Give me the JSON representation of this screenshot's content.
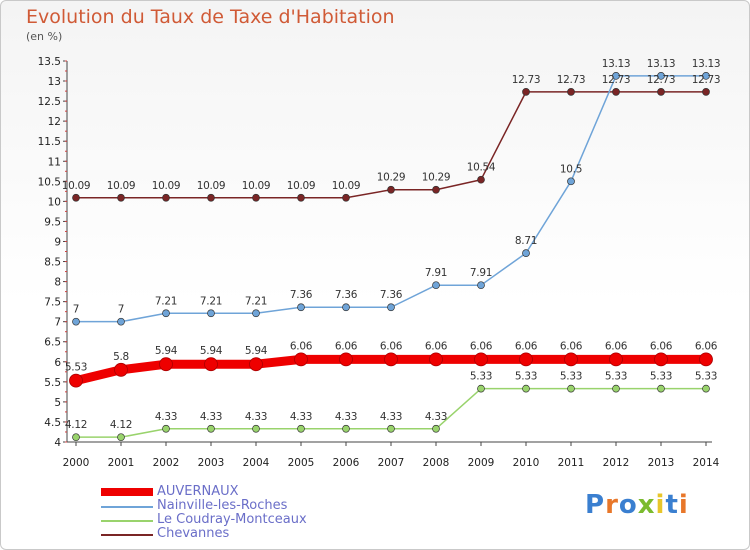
{
  "chart_data": {
    "type": "line",
    "title": "Evolution du Taux de Taxe d'Habitation",
    "unit_label": "(en %)",
    "x": [
      "2000",
      "2001",
      "2002",
      "2003",
      "2004",
      "2005",
      "2006",
      "2007",
      "2008",
      "2009",
      "2010",
      "2011",
      "2012",
      "2013",
      "2014"
    ],
    "ylim": [
      4,
      13.5
    ],
    "y_ticks": [
      "4",
      "4.5",
      "5",
      "5.5",
      "6",
      "6.5",
      "7",
      "7.5",
      "8",
      "8.5",
      "9",
      "9.5",
      "10",
      "10.5",
      "11",
      "11.5",
      "12",
      "12.5",
      "13",
      "13.5"
    ],
    "grid": false,
    "legend_position": "bottom-left",
    "series": [
      {
        "name": "AUVERNAUX",
        "color": "#ee0000",
        "values": [
          5.53,
          5.8,
          5.94,
          5.94,
          5.94,
          6.06,
          6.06,
          6.06,
          6.06,
          6.06,
          6.06,
          6.06,
          6.06,
          6.06,
          6.06
        ],
        "labels": [
          "5.53",
          "5.8",
          "5.94",
          "5.94",
          "5.94",
          "6.06",
          "6.06",
          "6.06",
          "6.06",
          "6.06",
          "6.06",
          "6.06",
          "6.06",
          "6.06",
          "6.06"
        ]
      },
      {
        "name": "Nainville-les-Roches",
        "color": "#6fa4d8",
        "values": [
          7,
          7,
          7.21,
          7.21,
          7.21,
          7.36,
          7.36,
          7.36,
          7.91,
          7.91,
          8.71,
          10.5,
          13.13,
          13.13,
          13.13
        ],
        "labels": [
          "7",
          "7",
          "7.21",
          "7.21",
          "7.21",
          "7.36",
          "7.36",
          "7.36",
          "7.91",
          "7.91",
          "8.71",
          "10.5",
          "13.13",
          "13.13",
          "13.13"
        ]
      },
      {
        "name": "Le Coudray-Montceaux",
        "color": "#99d36c",
        "values": [
          4.12,
          4.12,
          4.33,
          4.33,
          4.33,
          4.33,
          4.33,
          4.33,
          4.33,
          5.33,
          5.33,
          5.33,
          5.33,
          5.33,
          5.33
        ],
        "labels": [
          "4.12",
          "4.12",
          "4.33",
          "4.33",
          "4.33",
          "4.33",
          "4.33",
          "4.33",
          "4.33",
          "5.33",
          "5.33",
          "5.33",
          "5.33",
          "5.33",
          "5.33"
        ]
      },
      {
        "name": "Chevannes",
        "color": "#7a2525",
        "values": [
          10.09,
          10.09,
          10.09,
          10.09,
          10.09,
          10.09,
          10.09,
          10.29,
          10.29,
          10.54,
          12.73,
          12.73,
          12.73,
          12.73,
          12.73
        ],
        "labels": [
          "10.09",
          "10.09",
          "10.09",
          "10.09",
          "10.09",
          "10.09",
          "10.09",
          "10.29",
          "10.29",
          "10.54",
          "12.73",
          "12.73",
          "12.73",
          "12.73",
          "12.73"
        ]
      }
    ]
  },
  "logo": {
    "letters": [
      "P",
      "r",
      "o",
      "x",
      "i",
      "t",
      "i"
    ],
    "colors": [
      "#3a7fd0",
      "#e8772a",
      "#3a7fd0",
      "#7bbb2e",
      "#e8c62a",
      "#3a7fd0",
      "#e8772a"
    ]
  }
}
